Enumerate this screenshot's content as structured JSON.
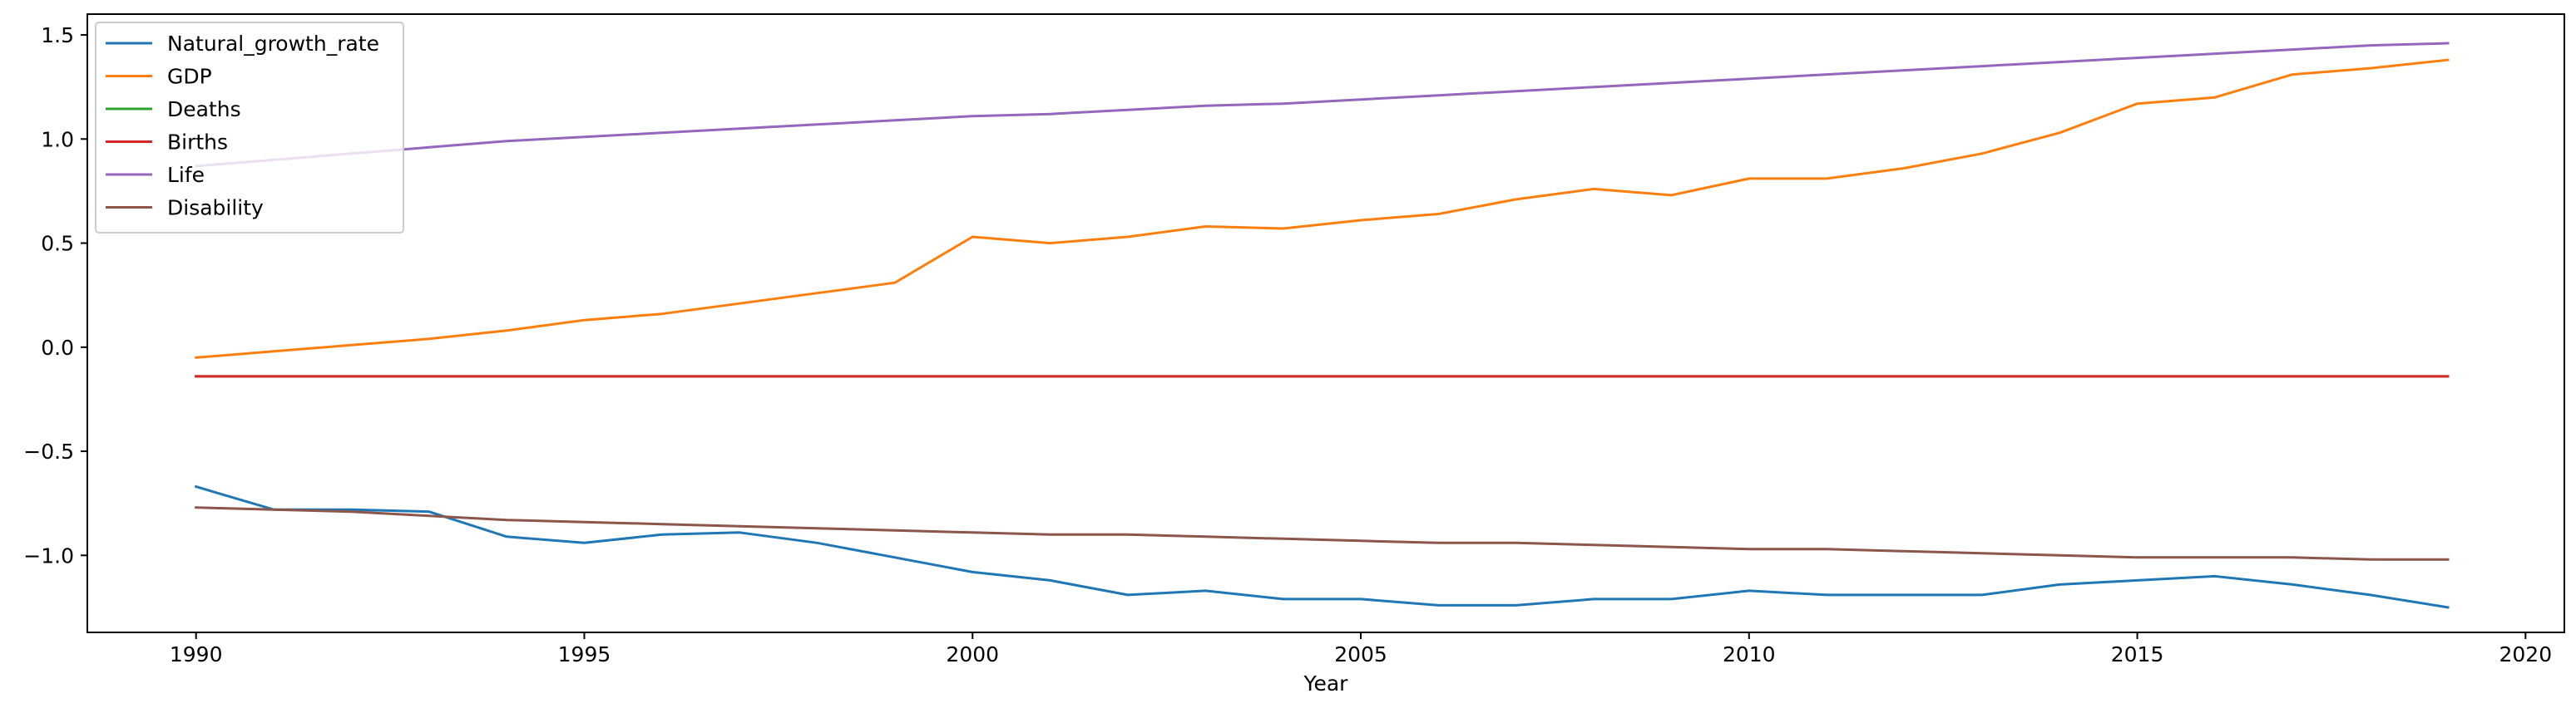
{
  "chart_data": {
    "type": "line",
    "xlabel": "Year",
    "ylabel": "",
    "xlim": [
      1988.6,
      2020.5
    ],
    "ylim": [
      -1.37,
      1.6
    ],
    "x_ticks": [
      1990,
      1995,
      2000,
      2005,
      2010,
      2015,
      2020
    ],
    "x_tick_labels": [
      "1990",
      "1995",
      "2000",
      "2005",
      "2010",
      "2015",
      "2020"
    ],
    "y_ticks": [
      -1.0,
      -0.5,
      0.0,
      0.5,
      1.0,
      1.5
    ],
    "y_tick_labels": [
      "−1.0",
      "−0.5",
      "0.0",
      "0.5",
      "1.0",
      "1.5"
    ],
    "grid": false,
    "legend_position": "upper left",
    "x": [
      1990,
      1991,
      1992,
      1993,
      1994,
      1995,
      1996,
      1997,
      1998,
      1999,
      2000,
      2001,
      2002,
      2003,
      2004,
      2005,
      2006,
      2007,
      2008,
      2009,
      2010,
      2011,
      2012,
      2013,
      2014,
      2015,
      2016,
      2017,
      2018,
      2019
    ],
    "series": [
      {
        "name": "Natural_growth_rate",
        "color": "#1f77b4",
        "values": [
          -0.67,
          -0.78,
          -0.78,
          -0.79,
          -0.91,
          -0.94,
          -0.9,
          -0.89,
          -0.94,
          -1.01,
          -1.08,
          -1.12,
          -1.19,
          -1.17,
          -1.21,
          -1.21,
          -1.24,
          -1.24,
          -1.21,
          -1.21,
          -1.17,
          -1.19,
          -1.19,
          -1.19,
          -1.14,
          -1.12,
          -1.1,
          -1.14,
          -1.19,
          -1.25
        ]
      },
      {
        "name": "GDP",
        "color": "#ff7f0e",
        "values": [
          -0.05,
          -0.02,
          0.01,
          0.04,
          0.08,
          0.13,
          0.16,
          0.21,
          0.26,
          0.31,
          0.53,
          0.5,
          0.53,
          0.58,
          0.57,
          0.61,
          0.64,
          0.71,
          0.76,
          0.73,
          0.81,
          0.81,
          0.86,
          0.93,
          1.03,
          1.17,
          1.2,
          1.31,
          1.34,
          1.38
        ]
      },
      {
        "name": "Deaths",
        "color": "#2ca02c",
        "values": [
          -0.14,
          -0.14,
          -0.14,
          -0.14,
          -0.14,
          -0.14,
          -0.14,
          -0.14,
          -0.14,
          -0.14,
          -0.14,
          -0.14,
          -0.14,
          -0.14,
          -0.14,
          -0.14,
          -0.14,
          -0.14,
          -0.14,
          -0.14,
          -0.14,
          -0.14,
          -0.14,
          -0.14,
          -0.14,
          -0.14,
          -0.14,
          -0.14,
          -0.14,
          -0.14
        ]
      },
      {
        "name": "Births",
        "color": "#d62728",
        "values": [
          -0.14,
          -0.14,
          -0.14,
          -0.14,
          -0.14,
          -0.14,
          -0.14,
          -0.14,
          -0.14,
          -0.14,
          -0.14,
          -0.14,
          -0.14,
          -0.14,
          -0.14,
          -0.14,
          -0.14,
          -0.14,
          -0.14,
          -0.14,
          -0.14,
          -0.14,
          -0.14,
          -0.14,
          -0.14,
          -0.14,
          -0.14,
          -0.14,
          -0.14,
          -0.14
        ]
      },
      {
        "name": "Life",
        "color": "#9467bd",
        "values": [
          0.87,
          0.9,
          0.93,
          0.96,
          0.99,
          1.01,
          1.03,
          1.05,
          1.07,
          1.09,
          1.11,
          1.12,
          1.14,
          1.16,
          1.17,
          1.19,
          1.21,
          1.23,
          1.25,
          1.27,
          1.29,
          1.31,
          1.33,
          1.35,
          1.37,
          1.39,
          1.41,
          1.43,
          1.45,
          1.46
        ]
      },
      {
        "name": "Disability",
        "color": "#8c564b",
        "values": [
          -0.77,
          -0.78,
          -0.79,
          -0.81,
          -0.83,
          -0.84,
          -0.85,
          -0.86,
          -0.87,
          -0.88,
          -0.89,
          -0.9,
          -0.9,
          -0.91,
          -0.92,
          -0.93,
          -0.94,
          -0.94,
          -0.95,
          -0.96,
          -0.97,
          -0.97,
          -0.98,
          -0.99,
          -1.0,
          -1.01,
          -1.01,
          -1.01,
          -1.02,
          -1.02
        ]
      }
    ]
  }
}
